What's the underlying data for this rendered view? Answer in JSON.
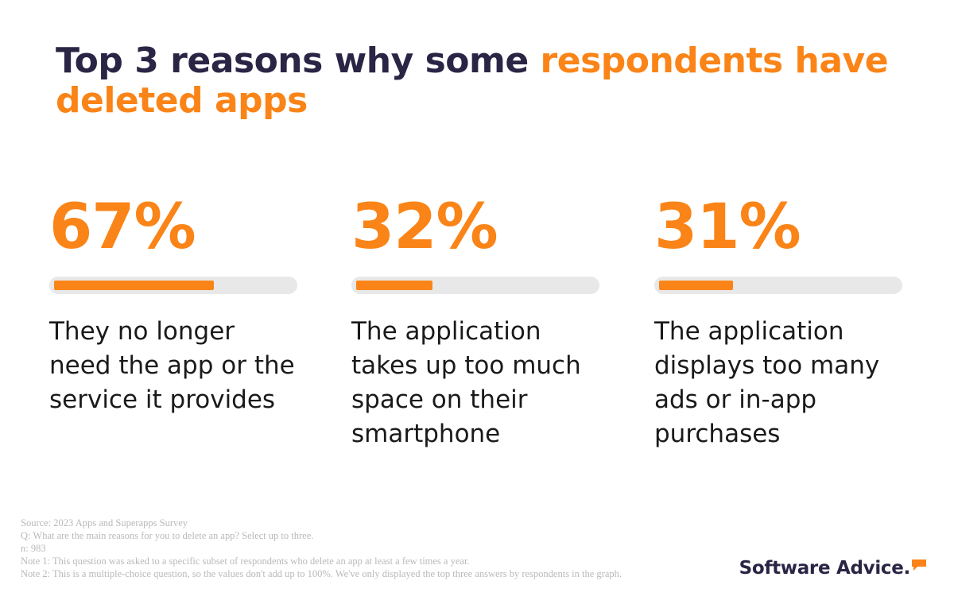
{
  "title": {
    "part1": "Top 3 reasons why some ",
    "part2": "respondents have deleted apps"
  },
  "chart_data": {
    "type": "bar",
    "title": "Top 3 reasons why some respondents have deleted apps",
    "categories": [
      "They no longer need the app or the service it provides",
      "The application takes up too much space on their smartphone",
      "The application displays too many ads or in-app purchases"
    ],
    "values": [
      67,
      32,
      31
    ],
    "value_labels": [
      "67%",
      "32%",
      "31%"
    ],
    "ylim": [
      0,
      100
    ],
    "unit": "%"
  },
  "notes": [
    "Source: 2023 Apps and Superapps Survey",
    "Q: What are the main reasons for you to delete an app? Select up to three.",
    "n: 983",
    "Note 1: This question was asked to a specific subset of respondents who delete an app at least a few times a year.",
    "Note 2: This is a multiple-choice question, so the values don't add up to 100%. We've only displayed the top three answers by respondents in the graph."
  ],
  "brand": {
    "name": "Software Advice.",
    "accent": "#fa8417",
    "dark": "#2a2545"
  }
}
